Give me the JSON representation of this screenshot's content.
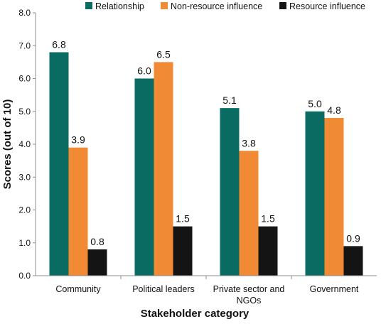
{
  "chart_data": {
    "type": "bar",
    "title": "",
    "xlabel": "Stakeholder category",
    "ylabel": "Scores (out of 10)",
    "ylim": [
      0,
      8
    ],
    "yticks": [
      "0.0",
      "1.0",
      "2.0",
      "3.0",
      "4.0",
      "5.0",
      "6.0",
      "7.0",
      "8.0"
    ],
    "grid": false,
    "legend_position": "top",
    "categories": [
      [
        "Community"
      ],
      [
        "Political leaders"
      ],
      [
        "Private sector and",
        "NGOs"
      ],
      [
        "Government"
      ]
    ],
    "series": [
      {
        "name": "Relationship",
        "color": "#0a6b63",
        "values": [
          6.8,
          6.0,
          5.1,
          5.0
        ],
        "labels": [
          "6.8",
          "6.0",
          "5.1",
          "5.0"
        ]
      },
      {
        "name": "Non-resource influence",
        "color": "#f08a34",
        "values": [
          3.9,
          6.5,
          3.8,
          4.8
        ],
        "labels": [
          "3.9",
          "6.5",
          "3.8",
          "4.8"
        ]
      },
      {
        "name": "Resource influence",
        "color": "#141414",
        "values": [
          0.8,
          1.5,
          1.5,
          0.9
        ],
        "labels": [
          "0.8",
          "1.5",
          "1.5",
          "0.9"
        ]
      }
    ]
  }
}
